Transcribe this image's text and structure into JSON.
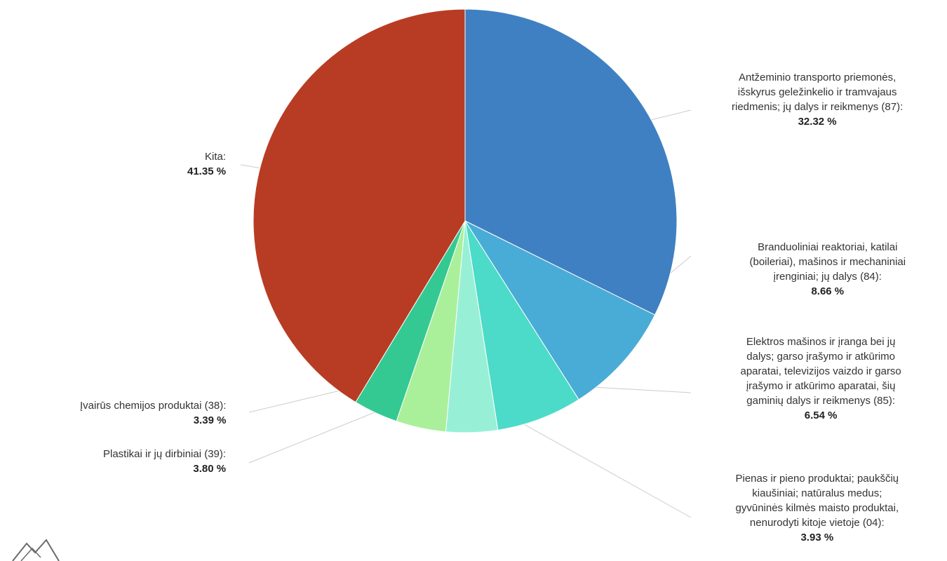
{
  "chart_data": {
    "type": "pie",
    "title": "",
    "slices": [
      {
        "label": "Antžeminio transporto priemonės, išskyrus geležinkelio ir tramvajaus riedmenis; jų dalys ir reikmenys (87):",
        "name_lines": [
          "Antžeminio transporto priemonės,",
          "išskyrus geležinkelio ir tramvajaus",
          "riedmenis; jų dalys ir reikmenys (87):"
        ],
        "value": 32.32,
        "value_label": "32.32 %",
        "color": "#3f80c2"
      },
      {
        "label": "Branduoliniai reaktoriai, katilai (boileriai), mašinos ir mechaniniai įrenginiai; jų dalys (84):",
        "name_lines": [
          "Branduoliniai reaktoriai, katilai",
          "(boileriai), mašinos ir mechaniniai",
          "įrenginiai; jų dalys (84):"
        ],
        "value": 8.66,
        "value_label": "8.66 %",
        "color": "#49acd6"
      },
      {
        "label": "Elektros mašinos ir įranga bei jų dalys; garso įrašymo ir atkūrimo aparatai, televizijos vaizdo ir garso įrašymo ir atkūrimo aparatai, šių gaminių dalys ir reikmenys (85):",
        "name_lines": [
          "Elektros mašinos ir įranga bei jų",
          "dalys; garso įrašymo ir atkūrimo",
          "aparatai, televizijos vaizdo ir garso",
          "įrašymo ir atkūrimo aparatai, šių",
          "gaminių dalys ir reikmenys (85):"
        ],
        "value": 6.54,
        "value_label": "6.54 %",
        "color": "#4cdbc8"
      },
      {
        "label": "Pienas ir pieno produktai; paukščių kiaušiniai; natūralus medus; gyvūninės kilmės maisto produktai, nenurodyti kitoje vietoje (04):",
        "name_lines": [
          "Pienas ir pieno produktai; paukščių",
          "kiaušiniai; natūralus medus;",
          "gyvūninės kilmės maisto produktai,",
          "nenurodyti kitoje vietoje (04):"
        ],
        "value": 3.93,
        "value_label": "3.93 %",
        "color": "#97f0d6"
      },
      {
        "label": "Plastikai ir jų dirbiniai (39):",
        "name_lines": [
          "Plastikai ir jų dirbiniai (39):"
        ],
        "value": 3.8,
        "value_label": "3.80 %",
        "color": "#aaf09a"
      },
      {
        "label": "Įvairūs chemijos produktai (38):",
        "name_lines": [
          "Įvairūs chemijos produktai (38):"
        ],
        "value": 3.39,
        "value_label": "3.39 %",
        "color": "#34c993"
      },
      {
        "label": "Kita:",
        "name_lines": [
          "Kita:"
        ],
        "value": 41.35,
        "value_label": "41.35 %",
        "color": "#b83c23"
      }
    ],
    "legend": "none"
  }
}
